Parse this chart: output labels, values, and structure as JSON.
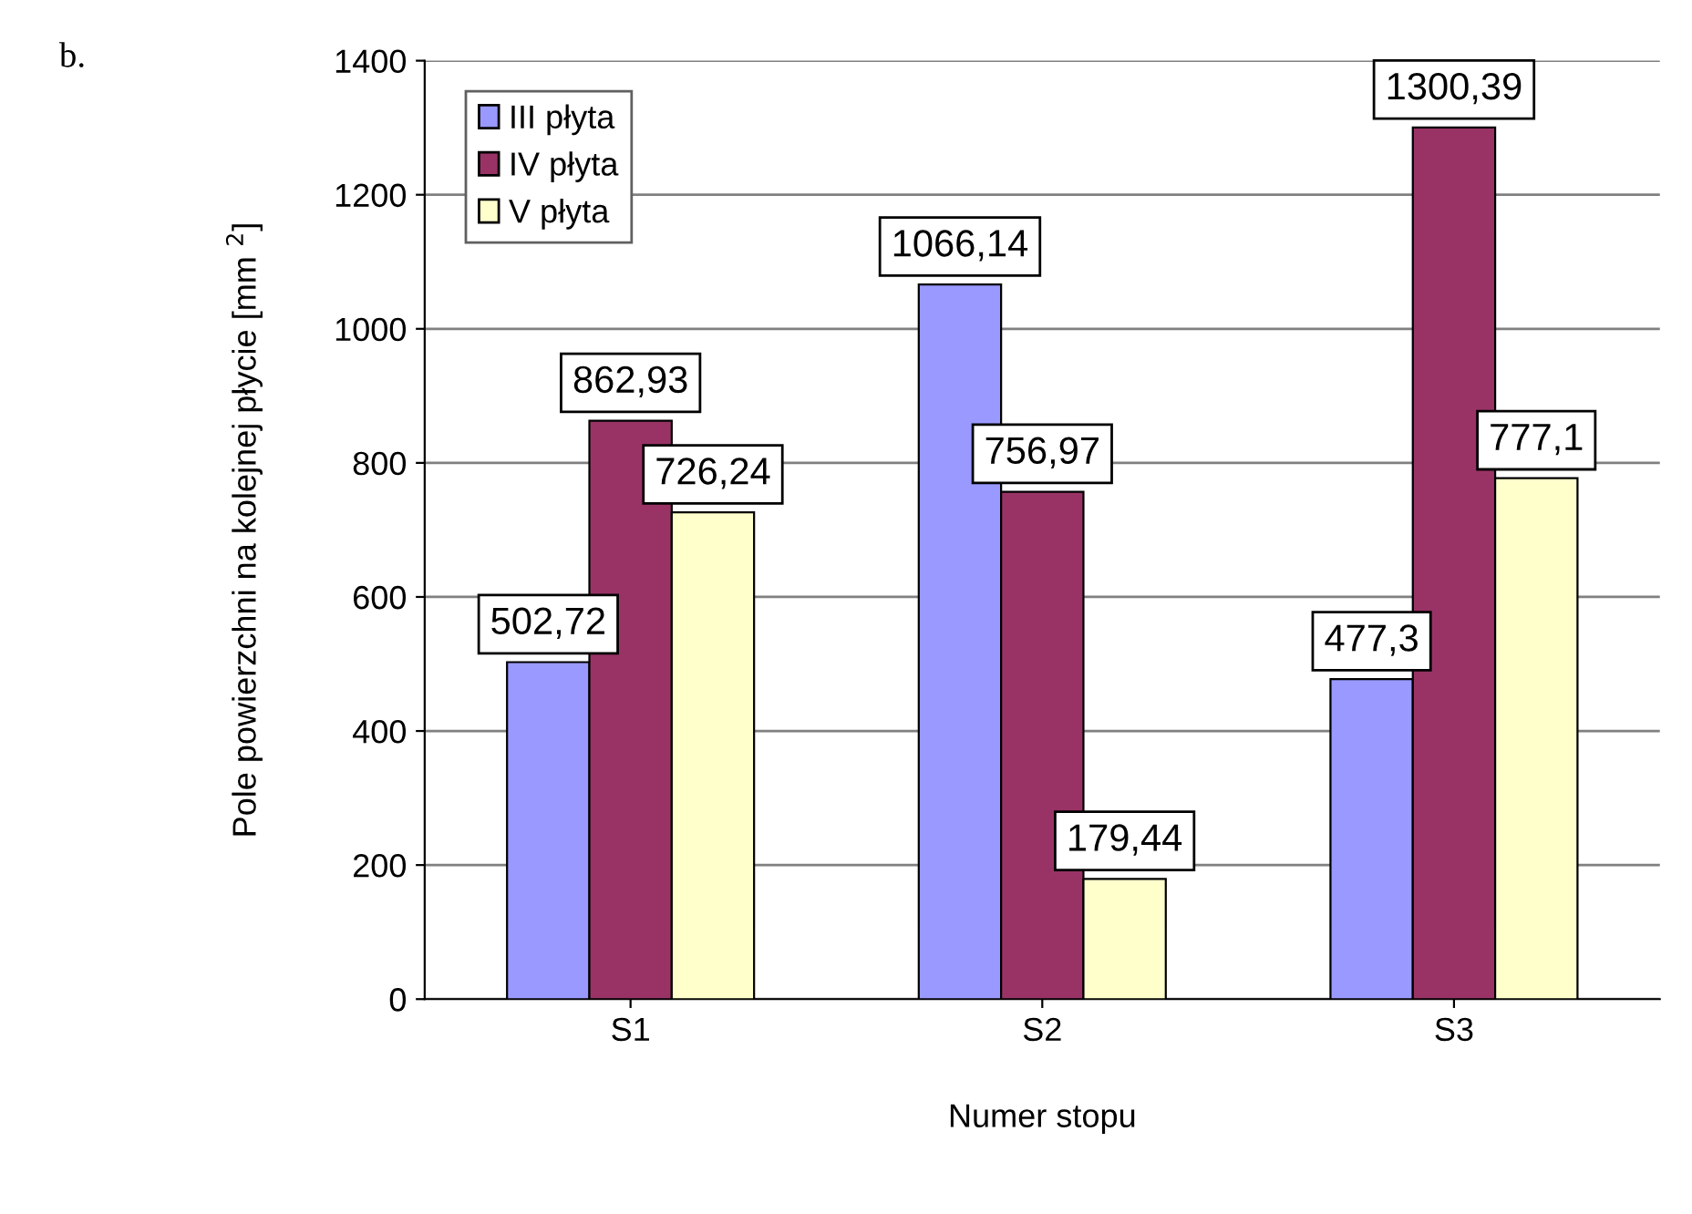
{
  "chart_data": {
    "type": "bar",
    "xlabel": "Numer stopu",
    "ylabel": "Pole powierzchni na kolejnej płycie [mm $^{2}$]",
    "annotations": [
      "b."
    ],
    "categories": [
      "S1",
      "S2",
      "S3"
    ],
    "series": [
      {
        "name": "III płyta",
        "color": "#9999ff",
        "values": [
          502.72,
          1066.14,
          477.3
        ],
        "value_labels": [
          "502,72",
          "1066,14",
          "477,3"
        ]
      },
      {
        "name": "IV płyta",
        "color": "#993366",
        "values": [
          862.93,
          756.97,
          1300.39
        ],
        "value_labels": [
          "862,93",
          "756,97",
          "1300,39"
        ]
      },
      {
        "name": "V płyta",
        "color": "#ffffcc",
        "values": [
          726.24,
          179.44,
          777.1
        ],
        "value_labels": [
          "726,24",
          "179,44",
          "777,1"
        ]
      }
    ],
    "ylim": [
      0,
      1400
    ],
    "yticks": [
      0,
      200,
      400,
      600,
      800,
      1000,
      1200,
      1400
    ],
    "grid": "y",
    "legend": "top left"
  }
}
